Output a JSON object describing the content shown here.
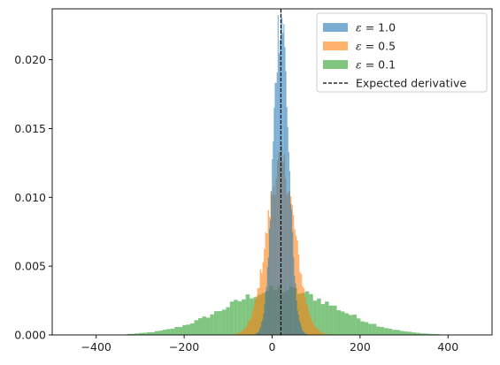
{
  "chart_data": {
    "type": "bar",
    "subtype": "histogram",
    "title": "",
    "xlabel": "",
    "ylabel": "",
    "xlim": [
      -500,
      500
    ],
    "ylim": [
      0,
      0.0237
    ],
    "x_ticks": [
      -400,
      -200,
      0,
      200,
      400
    ],
    "x_tick_labels": [
      "−400",
      "−200",
      "0",
      "200",
      "400"
    ],
    "y_ticks": [
      0.0,
      0.005,
      0.01,
      0.015,
      0.02
    ],
    "y_tick_labels": [
      "0.000",
      "0.005",
      "0.010",
      "0.015",
      "0.020"
    ],
    "grid": false,
    "legend_position": "top-right",
    "expected_derivative": 20,
    "series": [
      {
        "name": "ε = 1.0",
        "legend_math": {
          "symbol": "ε",
          "rest": " = 1.0"
        },
        "color": "#1f77b4",
        "alpha": 0.6,
        "distribution": "normal",
        "mean": 20,
        "std": 17,
        "range": [
          -60,
          100
        ],
        "bin_width": 2.2,
        "peak_density": 0.0235
      },
      {
        "name": "ε = 0.5",
        "legend_math": {
          "symbol": "ε",
          "rest": " = 0.5"
        },
        "color": "#ff7f0e",
        "alpha": 0.6,
        "distribution": "normal",
        "mean": 20,
        "std": 32,
        "range": [
          -100,
          140
        ],
        "bin_width": 3,
        "peak_density": 0.0125
      },
      {
        "name": "ε = 0.1",
        "legend_math": {
          "symbol": "ε",
          "rest": " = 0.1"
        },
        "color": "#2ca02c",
        "alpha": 0.6,
        "distribution": "normal",
        "mean": 20,
        "std": 125,
        "range": [
          -330,
          380
        ],
        "bin_width": 9,
        "peak_density": 0.0033
      }
    ],
    "reference_line": {
      "name": "Expected derivative",
      "x": 20,
      "color": "#000000",
      "style": "dashed"
    }
  }
}
